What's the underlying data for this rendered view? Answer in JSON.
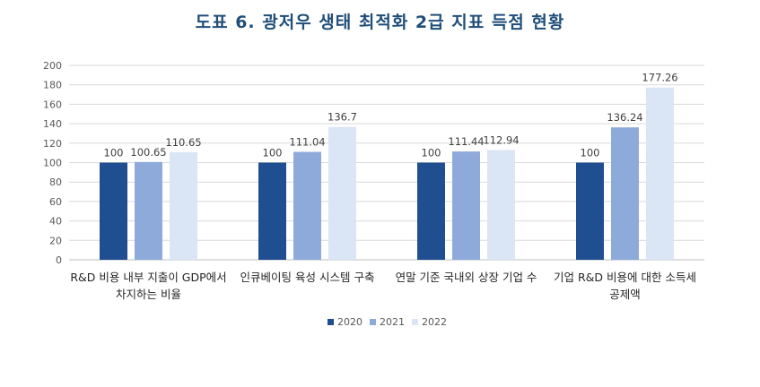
{
  "title": "도표 6. 광저우 생태 최적화 2급 지표 득점 현황",
  "chart_data": {
    "type": "bar",
    "title": "도표 6. 광저우 생태 최적화 2급 지표 득점 현황",
    "xlabel": "",
    "ylabel": "",
    "ylim": [
      0,
      200
    ],
    "yticks": [
      0,
      20,
      40,
      60,
      80,
      100,
      120,
      140,
      160,
      180,
      200
    ],
    "grid": true,
    "legend_position": "bottom",
    "categories": [
      [
        "R&D 비용 내부 지출이 GDP에서",
        "차지하는 비율"
      ],
      [
        "인큐베이팅 육성 시스템 구축"
      ],
      [
        "연말 기준 국내외 상장 기업 수"
      ],
      [
        "기업 R&D 비용에 대한 소득세",
        "공제액"
      ]
    ],
    "series": [
      {
        "name": "2020",
        "color": "#1f4e91",
        "values": [
          100,
          100,
          100,
          100
        ],
        "labels": [
          "100",
          "100",
          "100",
          "100"
        ]
      },
      {
        "name": "2021",
        "color": "#8eaadb",
        "values": [
          100.65,
          111.04,
          111.44,
          136.24
        ],
        "labels": [
          "100.65",
          "111.04",
          "111.44",
          "136.24"
        ]
      },
      {
        "name": "2022",
        "color": "#dae5f5",
        "values": [
          110.65,
          136.7,
          112.94,
          177.26
        ],
        "labels": [
          "110.65",
          "136.7",
          "112.94",
          "177.26"
        ]
      }
    ]
  }
}
